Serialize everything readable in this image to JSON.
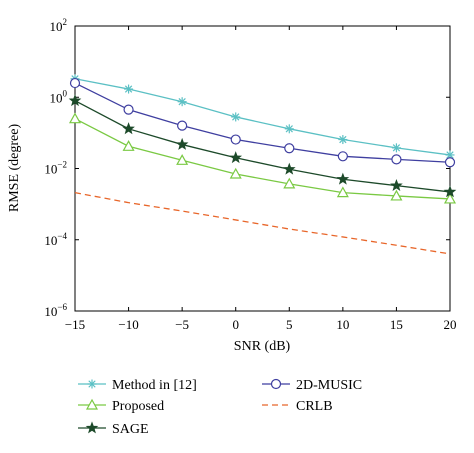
{
  "chart_data": {
    "type": "line",
    "title": "",
    "xlabel": "SNR (dB)",
    "ylabel": "RMSE (degree)",
    "x": [
      -15,
      -10,
      -5,
      0,
      5,
      10,
      15,
      20
    ],
    "xlim": [
      -15,
      20
    ],
    "ylim": [
      1e-06,
      100
    ],
    "yscale": "log",
    "x_ticks": [
      "−15",
      "−10",
      "−5",
      "0",
      "5",
      "10",
      "15",
      "20"
    ],
    "y_ticks": [
      {
        "base": "10",
        "exp": "2",
        "value": 100
      },
      {
        "base": "10",
        "exp": "0",
        "value": 1
      },
      {
        "base": "10",
        "exp": "−2",
        "value": 0.01
      },
      {
        "base": "10",
        "exp": "−4",
        "value": 0.0001
      },
      {
        "base": "10",
        "exp": "−6",
        "value": 1e-06
      }
    ],
    "grid": false,
    "legend_position": "bottom",
    "series": [
      {
        "name": "Method in [12]",
        "color": "#5bc0c4",
        "marker": "asterisk",
        "dash": "solid",
        "values": [
          3.3,
          1.7,
          0.75,
          0.28,
          0.13,
          0.065,
          0.038,
          0.024
        ]
      },
      {
        "name": "2D-MUSIC",
        "color": "#3f3fa0",
        "marker": "circle",
        "dash": "solid",
        "values": [
          2.5,
          0.45,
          0.16,
          0.065,
          0.037,
          0.022,
          0.018,
          0.015
        ]
      },
      {
        "name": "Proposed",
        "color": "#7ac943",
        "marker": "triangle",
        "dash": "solid",
        "values": [
          0.25,
          0.042,
          0.017,
          0.007,
          0.0037,
          0.0021,
          0.0017,
          0.0014
        ]
      },
      {
        "name": "CRLB",
        "color": "#e8662a",
        "marker": "none",
        "dash": "dashed",
        "values": [
          0.0021,
          0.0011,
          0.00064,
          0.00036,
          0.0002,
          0.00012,
          7e-05,
          4e-05
        ]
      },
      {
        "name": "SAGE",
        "color": "#1d4a2a",
        "marker": "star",
        "dash": "solid",
        "values": [
          0.8,
          0.13,
          0.047,
          0.02,
          0.0095,
          0.005,
          0.0033,
          0.0022
        ]
      }
    ]
  }
}
